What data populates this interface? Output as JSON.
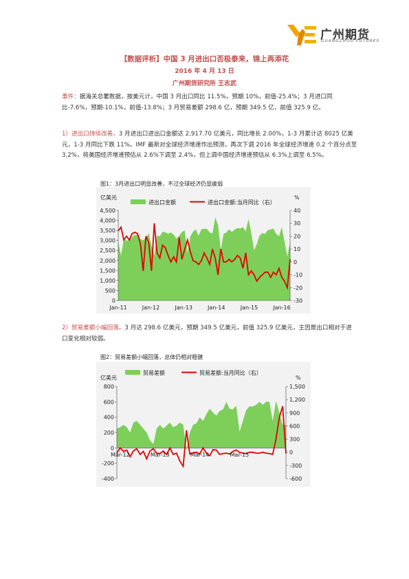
{
  "logo": {
    "cn": "广州期货",
    "en": "GUANGZHOU FUTURES"
  },
  "title": "【数据评析】中国 3 月进出口否极泰来，锦上再添花",
  "date": "2016 年 4 月 13 日",
  "author": "广州期货研究所 王志武",
  "p1": {
    "lead": "事件：",
    "text": "据海关总署数据，按美元计，中国 3 月出口同比 11.5%，预期 10%，前值-25.4%；3 月进口同比-7.6%，预期-10.1%，前值-13.8%；3 月贸易差额 298.6 亿，预期 349.5 亿，前值 325.9 亿。"
  },
  "p2": {
    "lead": "1）进出口持续改善。",
    "text": "3 月进出口进出口金额达 2,917.70 亿美元，同比增长 2.00%，1-3 月累计达 8025 亿美元，1-3 月同比下跌 11%。IMF 最新对全球经济增速作出预测，再次下调 2016 年全球经济增速 0.2 个百分点至 3.2%，将美国经济增速预估从 2.6%下调至 2.4%，但上调中国经济增速预估从 6.3%上调至 6.5%。"
  },
  "p3": {
    "lead": "2）贸易差额小幅回落。",
    "text": "3 月达 298.6 亿美元，预期 349.5 亿美元，前值 325.9 亿美元，主因是出口相对于进口变化相对较弱。"
  },
  "colors": {
    "area": "#7dcf5a",
    "line": "#e00000",
    "accent": "#c0504d",
    "chart_bg": "#f2f2f2"
  },
  "chart_data": [
    {
      "type": "area",
      "caption": "图1：3月进出口明显改善，不过全球经济仍显疲弱",
      "ylabel_left": "亿美元",
      "ylabel_right": "%",
      "legend": [
        "进出口金额",
        "进出口金额:当月同比（右）"
      ],
      "ylim_left": [
        0,
        4500
      ],
      "ylim_right": [
        -30,
        40
      ],
      "yticks_left": [
        "0",
        "500",
        "1,000",
        "1,500",
        "2,000",
        "2,500",
        "3,000",
        "3,500",
        "4,000",
        "4,500"
      ],
      "yticks_right": [
        "-30",
        "-20",
        "-10",
        "0",
        "10",
        "20",
        "30",
        "40"
      ],
      "xticks": [
        "Jan-11",
        "Jan-12",
        "Jan-13",
        "Jan-14",
        "Jan-15",
        "Jan-16"
      ],
      "series": [
        {
          "name": "进出口金额",
          "axis": "left",
          "values": [
            2950,
            2250,
            3040,
            3000,
            3010,
            3180,
            3270,
            3310,
            3070,
            3010,
            3130,
            3360,
            2720,
            2250,
            3260,
            3200,
            3430,
            3410,
            3330,
            3400,
            3290,
            3090,
            3240,
            3420,
            3500,
            2360,
            3190,
            3440,
            3560,
            3230,
            3560,
            3580,
            3580,
            3400,
            3350,
            4150,
            3780,
            2510,
            3330,
            3400,
            3560,
            3420,
            3550,
            3620,
            3600,
            3670,
            3450,
            4080,
            3400,
            2500,
            2830,
            3240,
            3370,
            3330,
            3520,
            3550,
            3600,
            3330,
            3210,
            3670,
            2940,
            2200,
            2920
          ]
        },
        {
          "name": "进出口金额:当月同比（右）",
          "axis": "right",
          "values": [
            24,
            27,
            17,
            20,
            17,
            22,
            23,
            22,
            14,
            -7,
            20,
            15,
            -7,
            30,
            7,
            3,
            13,
            11,
            5,
            0,
            4,
            0,
            19,
            2,
            10,
            17,
            8,
            1,
            0,
            -2,
            1,
            7,
            3,
            -2,
            10,
            3,
            -10,
            10,
            0,
            0,
            2,
            0,
            2,
            5,
            3,
            -5,
            7,
            -10,
            -7,
            -10,
            -15,
            -12,
            -10,
            -8,
            -8,
            -12,
            -8,
            -10,
            -5,
            -12,
            -15,
            -20,
            2
          ]
        }
      ]
    },
    {
      "type": "area",
      "caption": "图2：贸易差额小幅回落，总体仍相对稳健",
      "ylabel_left": "亿美元",
      "ylabel_right": "%",
      "legend": [
        "贸易差额",
        "贸易差额:当月同比（右）"
      ],
      "ylim_left": [
        -400,
        800
      ],
      "ylim_right": [
        -600,
        1500
      ],
      "yticks_left": [
        "-400",
        "-200",
        "0",
        "200",
        "400",
        "600",
        "800"
      ],
      "yticks_right": [
        "-600",
        "-300",
        "0",
        "300",
        "600",
        "900",
        "1,200",
        "1,500"
      ],
      "xticks": [
        "Mar-12",
        "Mar-13",
        "Mar-14",
        "Mar-15"
      ],
      "series": [
        {
          "name": "贸易差额",
          "axis": "left",
          "values": [
            250,
            270,
            300,
            270,
            200,
            330,
            350,
            300,
            250,
            200,
            100,
            50,
            250,
            300,
            250,
            290,
            330,
            270,
            290,
            330,
            300,
            -20,
            200,
            300,
            320,
            400,
            350,
            440,
            510,
            460,
            420,
            480,
            500,
            600,
            510,
            500,
            550,
            210,
            350,
            490,
            540,
            540,
            560,
            600,
            560,
            600,
            600,
            350,
            610,
            460,
            300,
            300
          ]
        },
        {
          "name": "贸易差额:当月同比（右）",
          "axis": "right",
          "values": [
            -20,
            100,
            20,
            50,
            -100,
            30,
            80,
            -50,
            20,
            -150,
            30,
            80,
            -20,
            -30,
            30,
            -50,
            100,
            -50,
            -20,
            -200,
            -320,
            500,
            -40,
            -10,
            0,
            -40,
            100,
            -20,
            -80,
            60,
            50,
            -50,
            -30,
            -20,
            -40,
            20,
            50,
            0,
            -20,
            -30,
            0,
            0,
            -20,
            -20,
            0,
            -20,
            -30,
            -50,
            300,
            800,
            1050,
            -30
          ]
        }
      ]
    }
  ]
}
